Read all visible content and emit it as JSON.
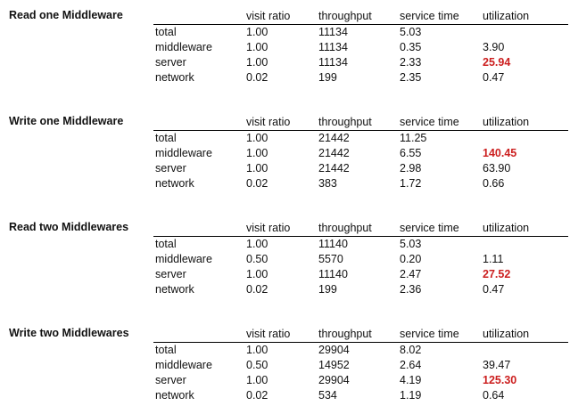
{
  "columns": [
    "visit ratio",
    "throughput",
    "service time",
    "utilization"
  ],
  "highlight_color": "#cc1f1f",
  "sections": [
    {
      "title": "Read one Middleware",
      "rows": [
        {
          "name": "total",
          "visit_ratio": "1.00",
          "throughput": "11134",
          "service_time": "5.03",
          "utilization": ""
        },
        {
          "name": "middleware",
          "visit_ratio": "1.00",
          "throughput": "11134",
          "service_time": "0.35",
          "utilization": "3.90"
        },
        {
          "name": "server",
          "visit_ratio": "1.00",
          "throughput": "11134",
          "service_time": "2.33",
          "utilization": "25.94"
        },
        {
          "name": "network",
          "visit_ratio": "0.02",
          "throughput": "199",
          "service_time": "2.35",
          "utilization": "0.47"
        }
      ]
    },
    {
      "title": "Write one Middleware",
      "rows": [
        {
          "name": "total",
          "visit_ratio": "1.00",
          "throughput": "21442",
          "service_time": "11.25",
          "utilization": ""
        },
        {
          "name": "middleware",
          "visit_ratio": "1.00",
          "throughput": "21442",
          "service_time": "6.55",
          "utilization": "140.45"
        },
        {
          "name": "server",
          "visit_ratio": "1.00",
          "throughput": "21442",
          "service_time": "2.98",
          "utilization": "63.90"
        },
        {
          "name": "network",
          "visit_ratio": "0.02",
          "throughput": "383",
          "service_time": "1.72",
          "utilization": "0.66"
        }
      ]
    },
    {
      "title": "Read two Middlewares",
      "rows": [
        {
          "name": "total",
          "visit_ratio": "1.00",
          "throughput": "11140",
          "service_time": "5.03",
          "utilization": ""
        },
        {
          "name": "middleware",
          "visit_ratio": "0.50",
          "throughput": "5570",
          "service_time": "0.20",
          "utilization": "1.11"
        },
        {
          "name": "server",
          "visit_ratio": "1.00",
          "throughput": "11140",
          "service_time": "2.47",
          "utilization": "27.52"
        },
        {
          "name": "network",
          "visit_ratio": "0.02",
          "throughput": "199",
          "service_time": "2.36",
          "utilization": "0.47"
        }
      ]
    },
    {
      "title": "Write two Middlewares",
      "rows": [
        {
          "name": "total",
          "visit_ratio": "1.00",
          "throughput": "29904",
          "service_time": "8.02",
          "utilization": ""
        },
        {
          "name": "middleware",
          "visit_ratio": "0.50",
          "throughput": "14952",
          "service_time": "2.64",
          "utilization": "39.47"
        },
        {
          "name": "server",
          "visit_ratio": "1.00",
          "throughput": "29904",
          "service_time": "4.19",
          "utilization": "125.30"
        },
        {
          "name": "network",
          "visit_ratio": "0.02",
          "throughput": "534",
          "service_time": "1.19",
          "utilization": "0.64"
        }
      ]
    }
  ]
}
